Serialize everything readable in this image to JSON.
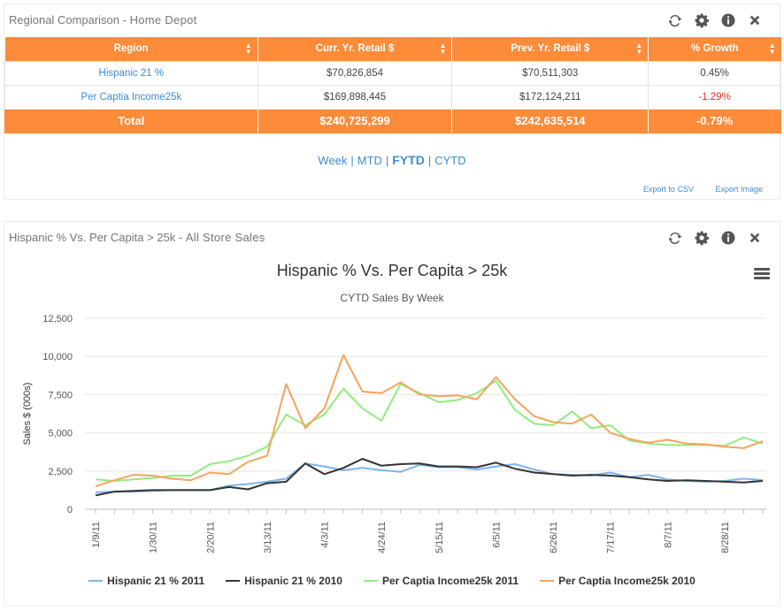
{
  "panel1": {
    "title": "Regional Comparison - ",
    "subtitle": "Home Depot",
    "table": {
      "headers": [
        "Region",
        "Curr. Yr. Retail $",
        "Prev. Yr. Retail $",
        "% Growth"
      ],
      "rows": [
        {
          "region": "Hispanic 21 %",
          "curr": "$70,826,854",
          "prev": "$70,511,303",
          "growth": "0.45%"
        },
        {
          "region": "Per Captia Income25k",
          "curr": "$169,898,445",
          "prev": "$172,124,211",
          "growth": "-1.29%"
        }
      ],
      "total": {
        "region": "Total",
        "curr": "$240,725,299",
        "prev": "$242,635,514",
        "growth": "-0.79%"
      }
    },
    "periods": [
      "Week",
      "MTD",
      "FYTD",
      "CYTD"
    ],
    "active_period": "FYTD",
    "export_csv": "Export to CSV",
    "export_image": "Export Image"
  },
  "panel2": {
    "title": "Hispanic % Vs. Per Capita > 25k - ",
    "subtitle": "All Store Sales"
  },
  "icons": [
    "refresh-icon",
    "gear-icon",
    "info-icon",
    "close-icon"
  ],
  "colors": {
    "orange_header": "#fc8b3a",
    "link_blue": "#3d8bd1",
    "negative_red": "#e0301e"
  },
  "chart_data": {
    "type": "line",
    "title": "Hispanic % Vs. Per Capita > 25k",
    "subtitle": "CYTD Sales By Week",
    "ylabel": "Sales $ (000s)",
    "ylim": [
      0,
      12500
    ],
    "yticks": [
      "0",
      "2,500",
      "5,000",
      "7,500",
      "10,000",
      "12,500"
    ],
    "xtick_labels": [
      "1/9/11",
      "1/30/11",
      "2/20/11",
      "3/13/11",
      "4/3/11",
      "4/24/11",
      "5/15/11",
      "6/5/11",
      "6/26/11",
      "7/17/11",
      "8/7/11",
      "8/28/11"
    ],
    "weeks": 36,
    "series": [
      {
        "name": "Hispanic 21 % 2011",
        "color": "#7cb5ec",
        "values": [
          1100,
          1150,
          1150,
          1200,
          1250,
          1250,
          1250,
          1550,
          1650,
          1800,
          2000,
          3000,
          2800,
          2550,
          2700,
          2550,
          2450,
          2900,
          2750,
          2750,
          2600,
          2800,
          2950,
          2600,
          2300,
          2250,
          2200,
          2400,
          2100,
          2250,
          1950,
          1850,
          1800,
          1850,
          2000,
          1900
        ]
      },
      {
        "name": "Hispanic 21 % 2010",
        "color": "#333333",
        "values": [
          900,
          1150,
          1200,
          1250,
          1250,
          1250,
          1250,
          1450,
          1300,
          1700,
          1800,
          3000,
          2300,
          2700,
          3300,
          2850,
          2950,
          3000,
          2800,
          2800,
          2750,
          3050,
          2650,
          2400,
          2300,
          2200,
          2250,
          2200,
          2100,
          1950,
          1850,
          1900,
          1850,
          1800,
          1750,
          1850
        ]
      },
      {
        "name": "Per Captia Income25k 2011",
        "color": "#90ed7d",
        "values": [
          1950,
          1850,
          1950,
          2050,
          2200,
          2200,
          2950,
          3150,
          3500,
          4100,
          6200,
          5500,
          6200,
          7900,
          6600,
          5800,
          8200,
          7600,
          7000,
          7150,
          7600,
          8400,
          6500,
          5600,
          5500,
          6400,
          5300,
          5500,
          4500,
          4300,
          4200,
          4200,
          4200,
          4150,
          4700,
          4300
        ]
      },
      {
        "name": "Per Captia Income25k 2010",
        "color": "#f7a35c",
        "values": [
          1500,
          1900,
          2250,
          2200,
          2000,
          1900,
          2400,
          2300,
          3100,
          3500,
          8200,
          5300,
          6600,
          10100,
          7700,
          7600,
          8300,
          7500,
          7400,
          7450,
          7200,
          8650,
          7200,
          6100,
          5700,
          5600,
          6200,
          5000,
          4600,
          4350,
          4550,
          4300,
          4250,
          4100,
          4000,
          4450
        ]
      }
    ]
  }
}
